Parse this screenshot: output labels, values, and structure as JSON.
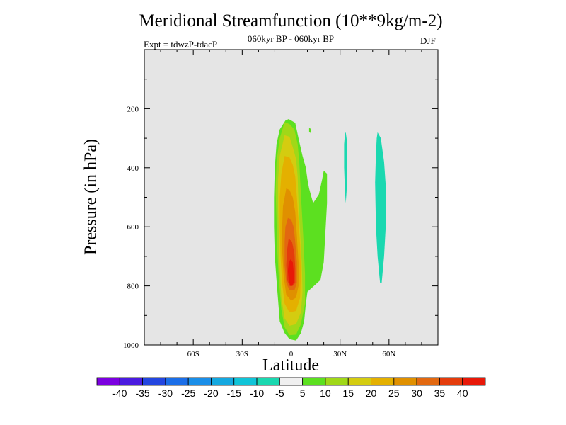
{
  "chart_data": {
    "type": "heatmap",
    "title": "Meridional Streamfunction (10**9kg/m-2)",
    "subtitle": "060kyr BP - 060kyr BP",
    "left_string": "Expt = tdwzP-tdacP",
    "right_string": "DJF",
    "xlabel": "Latitude",
    "ylabel": "Pressure (in hPa)",
    "x_range": [
      -90,
      90
    ],
    "y_range": [
      1000,
      0
    ],
    "y_axis_reversed": true,
    "x_ticks": [
      {
        "value": -60,
        "label": "60S"
      },
      {
        "value": -30,
        "label": "30S"
      },
      {
        "value": 0,
        "label": "0"
      },
      {
        "value": 30,
        "label": "30N"
      },
      {
        "value": 60,
        "label": "60N"
      }
    ],
    "y_ticks": [
      {
        "value": 200,
        "label": "200"
      },
      {
        "value": 400,
        "label": "400"
      },
      {
        "value": 600,
        "label": "600"
      },
      {
        "value": 800,
        "label": "800"
      },
      {
        "value": 1000,
        "label": "1000"
      }
    ],
    "background_color": "#e5e5e5",
    "colorbar": {
      "labels": [
        "-40",
        "-35",
        "-30",
        "-25",
        "-20",
        "-15",
        "-10",
        "-5",
        "5",
        "10",
        "15",
        "20",
        "25",
        "30",
        "35",
        "40"
      ],
      "colors": [
        "#7b00e0",
        "#4a1be0",
        "#2346e0",
        "#1b6ee8",
        "#1a8ee8",
        "#14a8e0",
        "#10c4d8",
        "#1ad8b0",
        "#f0f0f0",
        "#5ce020",
        "#a0d818",
        "#d4cc10",
        "#e4b000",
        "#e09000",
        "#e26810",
        "#e43c0c",
        "#e81808"
      ]
    },
    "contours": [
      {
        "level": 5,
        "color": "#5ce020",
        "points": [
          [
            -3.5,
            240
          ],
          [
            -1.5,
            235
          ],
          [
            2.5,
            248
          ],
          [
            4.5,
            300
          ],
          [
            7,
            360
          ],
          [
            9,
            400
          ],
          [
            10,
            440
          ],
          [
            11,
            470
          ],
          [
            13.5,
            520
          ],
          [
            17,
            490
          ],
          [
            19,
            440
          ],
          [
            20,
            410
          ],
          [
            22,
            420
          ],
          [
            22,
            520
          ],
          [
            21,
            620
          ],
          [
            20,
            720
          ],
          [
            18,
            780
          ],
          [
            14,
            800
          ],
          [
            10,
            820
          ],
          [
            9,
            860
          ],
          [
            8,
            920
          ],
          [
            6,
            960
          ],
          [
            3,
            985
          ],
          [
            -1,
            980
          ],
          [
            -4,
            960
          ],
          [
            -7,
            920
          ],
          [
            -8,
            850
          ],
          [
            -9,
            780
          ],
          [
            -10,
            700
          ],
          [
            -10.5,
            600
          ],
          [
            -10.5,
            500
          ],
          [
            -10,
            400
          ],
          [
            -9,
            320
          ],
          [
            -7,
            270
          ]
        ]
      },
      {
        "level": 10,
        "color": "#a0d818",
        "points": [
          [
            -4,
            245
          ],
          [
            -1,
            252
          ],
          [
            2,
            270
          ],
          [
            4,
            320
          ],
          [
            5,
            380
          ],
          [
            5.5,
            440
          ],
          [
            6.5,
            540
          ],
          [
            7.5,
            640
          ],
          [
            8.5,
            760
          ],
          [
            8.5,
            860
          ],
          [
            6,
            930
          ],
          [
            3,
            965
          ],
          [
            -1,
            967
          ],
          [
            -4,
            940
          ],
          [
            -6,
            880
          ],
          [
            -7.5,
            780
          ],
          [
            -8.5,
            680
          ],
          [
            -9,
            580
          ],
          [
            -9.5,
            480
          ],
          [
            -9,
            380
          ],
          [
            -7,
            300
          ]
        ]
      },
      {
        "level": 15,
        "color": "#d4cc10",
        "points": [
          [
            -4,
            290
          ],
          [
            -1,
            295
          ],
          [
            1,
            330
          ],
          [
            3,
            370
          ],
          [
            4,
            430
          ],
          [
            4.5,
            520
          ],
          [
            5.5,
            620
          ],
          [
            6.5,
            720
          ],
          [
            7,
            820
          ],
          [
            6,
            890
          ],
          [
            3,
            930
          ],
          [
            -1,
            935
          ],
          [
            -4,
            910
          ],
          [
            -6,
            840
          ],
          [
            -7,
            740
          ],
          [
            -7.5,
            640
          ],
          [
            -8,
            540
          ],
          [
            -8,
            440
          ],
          [
            -7,
            360
          ]
        ]
      },
      {
        "level": 20,
        "color": "#e4b000",
        "points": [
          [
            -4,
            360
          ],
          [
            -1,
            365
          ],
          [
            1,
            390
          ],
          [
            2.5,
            430
          ],
          [
            3.5,
            500
          ],
          [
            4.5,
            580
          ],
          [
            5.5,
            660
          ],
          [
            6,
            760
          ],
          [
            5.5,
            840
          ],
          [
            3,
            885
          ],
          [
            -1,
            890
          ],
          [
            -4,
            860
          ],
          [
            -5.5,
            790
          ],
          [
            -6.5,
            700
          ],
          [
            -7,
            600
          ],
          [
            -7,
            500
          ],
          [
            -6,
            420
          ]
        ]
      },
      {
        "level": 25,
        "color": "#e09000",
        "points": [
          [
            -3,
            470
          ],
          [
            -1,
            475
          ],
          [
            1,
            500
          ],
          [
            2.5,
            550
          ],
          [
            3.5,
            630
          ],
          [
            4.5,
            720
          ],
          [
            4.5,
            800
          ],
          [
            3,
            840
          ],
          [
            0,
            850
          ],
          [
            -3,
            830
          ],
          [
            -4.5,
            770
          ],
          [
            -5.5,
            680
          ],
          [
            -5.5,
            600
          ],
          [
            -5,
            530
          ]
        ]
      },
      {
        "level": 30,
        "color": "#e26810",
        "points": [
          [
            -2,
            570
          ],
          [
            0,
            575
          ],
          [
            1.5,
            600
          ],
          [
            2.5,
            650
          ],
          [
            3.5,
            720
          ],
          [
            3.5,
            790
          ],
          [
            2,
            815
          ],
          [
            -1,
            815
          ],
          [
            -3,
            790
          ],
          [
            -4,
            730
          ],
          [
            -4,
            650
          ],
          [
            -3.5,
            600
          ]
        ]
      },
      {
        "level": 35,
        "color": "#e43c0c",
        "points": [
          [
            -1.5,
            640
          ],
          [
            0.5,
            650
          ],
          [
            2,
            690
          ],
          [
            2.5,
            740
          ],
          [
            2.5,
            790
          ],
          [
            1,
            800
          ],
          [
            -1,
            800
          ],
          [
            -2.5,
            780
          ],
          [
            -3,
            730
          ],
          [
            -2.5,
            680
          ]
        ]
      },
      {
        "level": 40,
        "color": "#e81808",
        "points": [
          [
            -0.5,
            710
          ],
          [
            1,
            720
          ],
          [
            1.5,
            750
          ],
          [
            1.5,
            790
          ],
          [
            0.5,
            800
          ],
          [
            -0.5,
            800
          ],
          [
            -1.5,
            780
          ],
          [
            -2,
            750
          ],
          [
            -1.5,
            725
          ]
        ]
      },
      {
        "level": -5,
        "color": "#1ad8b0",
        "points": [
          [
            33.5,
            280
          ],
          [
            34.5,
            320
          ],
          [
            34.5,
            400
          ],
          [
            34,
            480
          ],
          [
            33.5,
            520
          ],
          [
            33,
            480
          ],
          [
            32.5,
            400
          ],
          [
            32.5,
            320
          ],
          [
            33,
            285
          ]
        ]
      },
      {
        "level": -5,
        "color": "#1ad8b0",
        "points": [
          [
            53,
            280
          ],
          [
            55,
            300
          ],
          [
            57,
            380
          ],
          [
            58,
            460
          ],
          [
            58,
            600
          ],
          [
            57,
            700
          ],
          [
            55.5,
            790
          ],
          [
            54.5,
            790
          ],
          [
            53,
            700
          ],
          [
            52,
            600
          ],
          [
            51.5,
            450
          ],
          [
            52,
            350
          ],
          [
            52.5,
            300
          ]
        ]
      },
      {
        "level": 5,
        "color": "#5ce020",
        "points": [
          [
            11,
            265
          ],
          [
            12,
            268
          ],
          [
            12,
            282
          ],
          [
            11,
            280
          ]
        ]
      }
    ]
  }
}
